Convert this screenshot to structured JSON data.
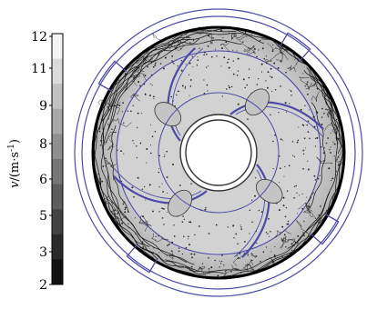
{
  "legend": {
    "quantity": "v",
    "unit": "/(m·s",
    "exponent": "-1",
    "close": ")",
    "ticks": [
      "12",
      "11",
      "9",
      "8",
      "6",
      "5",
      "3",
      "2"
    ]
  },
  "colors": {
    "outline": "#4b4ba5",
    "streamline": "#000000",
    "impeller_fill": "#cfcfcf",
    "colorbar_top": "#f4f4f4",
    "colorbar_bottom": "#111111"
  },
  "impeller": {
    "blade_count": 4
  }
}
